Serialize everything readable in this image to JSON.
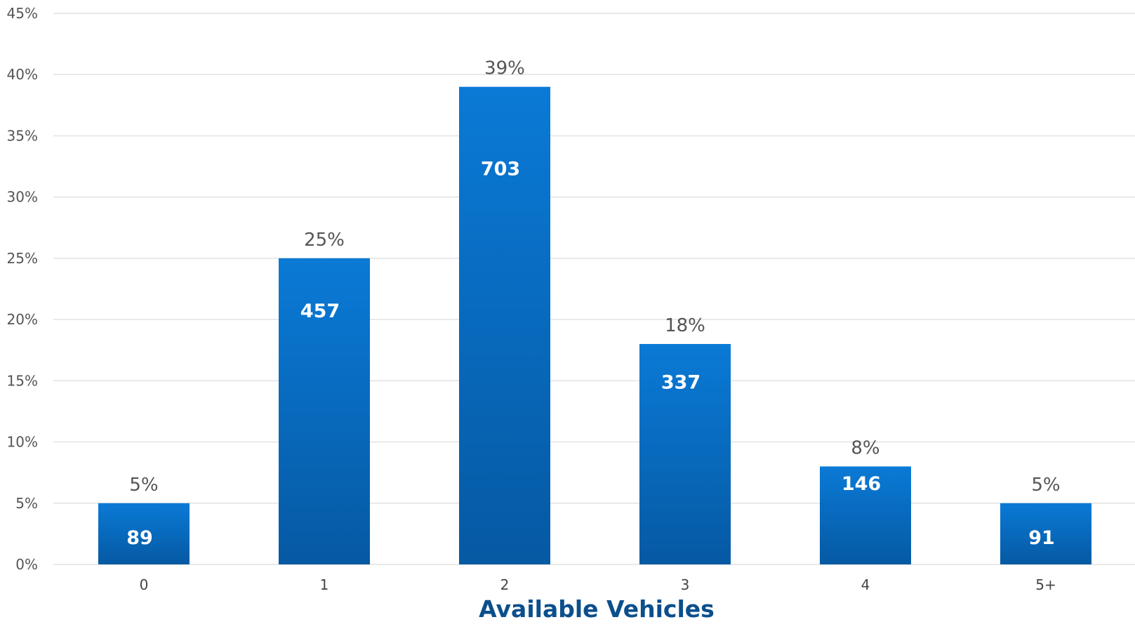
{
  "chart_data": {
    "type": "bar",
    "xlabel": "Available Vehicles",
    "ylabel": "",
    "categories": [
      "0",
      "1",
      "2",
      "3",
      "4",
      "5+"
    ],
    "values": [
      5,
      25,
      39,
      18,
      8,
      5
    ],
    "value_labels": [
      "5%",
      "25%",
      "39%",
      "18%",
      "8%",
      "5%"
    ],
    "counts": [
      89,
      457,
      703,
      337,
      146,
      91
    ],
    "ylim": [
      0,
      45
    ],
    "y_ticks": [
      0,
      5,
      10,
      15,
      20,
      25,
      30,
      35,
      40,
      45
    ],
    "y_tick_labels": [
      "0%",
      "5%",
      "10%",
      "15%",
      "20%",
      "25%",
      "30%",
      "35%",
      "40%",
      "45%"
    ],
    "grid": true,
    "colors": {
      "bar_top": "#0a7ad6",
      "bar_bottom": "#0659a3",
      "title": "#0b4f8c"
    }
  }
}
